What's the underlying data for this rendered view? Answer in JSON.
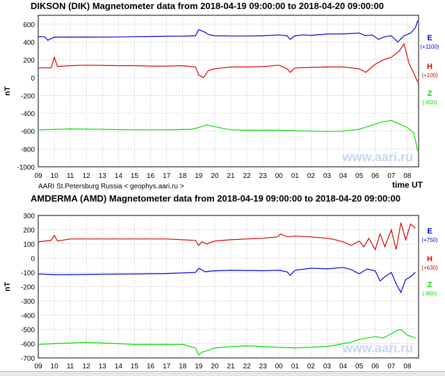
{
  "footer_note": "AARI St.Petersburg Russia   < geophys.aari.ru >",
  "chart_data": [
    {
      "type": "line",
      "title": "DIKSON (DIK) Magnetometer data from 2018-04-19 09:00:00 to 2018-04-20 09:00:00",
      "ylabel": "nT",
      "xlabel": "time UT",
      "ylim": [
        -1000,
        700
      ],
      "yticks": [
        600,
        400,
        200,
        0,
        -200,
        -400,
        -600,
        -800,
        -1000
      ],
      "xlim": [
        0,
        23.7
      ],
      "xtick_labels": [
        "09",
        "10",
        "11",
        "12",
        "13",
        "14",
        "15",
        "16",
        "17",
        "18",
        "19",
        "20",
        "21",
        "22",
        "23",
        "00",
        "01",
        "02",
        "03",
        "04",
        "05",
        "06",
        "07",
        "08"
      ],
      "grid": true,
      "watermark": "www.aari.ru",
      "series": [
        {
          "name": "E",
          "offset_label": "(+1100)",
          "color": "#0000dd",
          "x": [
            0,
            0.4,
            0.6,
            1,
            2,
            3,
            4,
            5,
            6,
            7,
            8,
            9,
            9.8,
            10,
            10.4,
            10.6,
            11,
            12,
            13,
            14,
            15,
            15.5,
            15.7,
            16,
            16.5,
            17,
            18,
            19,
            20,
            20.4,
            20.8,
            21.2,
            21.6,
            22,
            22.4,
            22.8,
            23.2,
            23.5,
            23.65
          ],
          "y": [
            460,
            460,
            420,
            455,
            455,
            455,
            456,
            457,
            460,
            462,
            465,
            466,
            470,
            540,
            510,
            485,
            470,
            468,
            468,
            470,
            480,
            470,
            430,
            470,
            480,
            475,
            490,
            490,
            500,
            470,
            480,
            430,
            460,
            470,
            400,
            470,
            500,
            560,
            640
          ]
        },
        {
          "name": "H",
          "offset_label": "(+100)",
          "color": "#dd0000",
          "x": [
            0,
            0.8,
            1,
            1.2,
            2,
            3,
            4,
            5,
            6,
            7,
            8,
            9,
            9.8,
            10,
            10.3,
            10.6,
            11,
            11.5,
            12,
            13,
            14,
            15,
            15.5,
            15.7,
            16,
            17,
            18,
            19,
            20,
            20.4,
            21,
            21.5,
            22,
            22.5,
            22.8,
            23.1,
            23.4,
            23.65
          ],
          "y": [
            110,
            110,
            230,
            125,
            135,
            140,
            138,
            135,
            135,
            130,
            130,
            135,
            120,
            30,
            0,
            80,
            100,
            110,
            120,
            120,
            125,
            140,
            100,
            60,
            110,
            115,
            120,
            120,
            100,
            60,
            150,
            200,
            230,
            300,
            380,
            160,
            50,
            -50
          ]
        },
        {
          "name": "Z",
          "offset_label": "(-650)",
          "color": "#00dd00",
          "x": [
            0,
            2,
            4,
            6,
            8,
            9.5,
            10,
            10.5,
            11,
            12,
            13,
            14,
            15,
            16,
            17,
            18,
            19,
            20,
            20.5,
            21,
            21.5,
            22,
            22.5,
            23,
            23.4,
            23.65
          ],
          "y": [
            -585,
            -575,
            -580,
            -585,
            -585,
            -580,
            -560,
            -530,
            -550,
            -585,
            -590,
            -590,
            -590,
            -595,
            -600,
            -605,
            -600,
            -580,
            -550,
            -520,
            -495,
            -480,
            -520,
            -560,
            -620,
            -820
          ]
        }
      ]
    },
    {
      "type": "line",
      "title": "AMDERMA (AMD) Magnetometer data from 2018-04-19 09:00:00 to 2018-04-20 09:00:00",
      "ylabel": "nT",
      "ylim": [
        -700,
        300
      ],
      "yticks": [
        300,
        200,
        100,
        0,
        -100,
        -200,
        -300,
        -400,
        -500,
        -600,
        -700
      ],
      "xlim": [
        0,
        23.7
      ],
      "xtick_labels": [
        "09",
        "10",
        "11",
        "12",
        "13",
        "14",
        "15",
        "16",
        "17",
        "18",
        "19",
        "20",
        "21",
        "22",
        "23",
        "00",
        "01",
        "02",
        "03",
        "04",
        "05",
        "06",
        "07",
        "08"
      ],
      "grid": true,
      "watermark": "www.aari.ru",
      "series": [
        {
          "name": "E",
          "offset_label": "(+750)",
          "color": "#0000dd",
          "x": [
            0,
            1,
            2,
            4,
            6,
            8,
            9.8,
            10,
            10.4,
            10.8,
            12,
            14,
            15,
            15.5,
            15.7,
            16,
            17,
            18,
            19,
            19.5,
            20,
            20.5,
            21,
            21.3,
            21.6,
            22,
            22.3,
            22.6,
            22.9,
            23.2,
            23.5
          ],
          "y": [
            -110,
            -115,
            -115,
            -112,
            -110,
            -108,
            -100,
            -70,
            -95,
            -90,
            -85,
            -88,
            -85,
            -95,
            -120,
            -85,
            -70,
            -75,
            -65,
            -80,
            -110,
            -75,
            -90,
            -160,
            -130,
            -100,
            -180,
            -240,
            -150,
            -130,
            -100
          ]
        },
        {
          "name": "H",
          "offset_label": "(+630)",
          "color": "#dd0000",
          "x": [
            0,
            0.8,
            1,
            1.2,
            2,
            4,
            6,
            8,
            9.8,
            10,
            10.2,
            10.5,
            11,
            12,
            14,
            14.9,
            15.1,
            15.5,
            16,
            17,
            18,
            18.5,
            19,
            19.5,
            20,
            20.3,
            20.6,
            21,
            21.3,
            21.6,
            22,
            22.3,
            22.6,
            22.9,
            23.2,
            23.5
          ],
          "y": [
            115,
            125,
            160,
            120,
            135,
            135,
            135,
            135,
            125,
            90,
            115,
            100,
            120,
            130,
            140,
            150,
            170,
            150,
            155,
            150,
            140,
            130,
            115,
            90,
            120,
            80,
            140,
            60,
            170,
            80,
            200,
            60,
            250,
            130,
            240,
            210
          ]
        },
        {
          "name": "Z",
          "offset_label": "(-900)",
          "color": "#00dd00",
          "x": [
            0,
            1,
            2,
            3,
            4,
            5,
            6,
            7,
            8,
            9,
            9.8,
            10,
            10.2,
            10.5,
            11,
            12,
            13,
            14,
            15,
            16,
            17,
            18,
            18.5,
            19,
            19.5,
            20,
            20.5,
            21,
            21.5,
            22,
            22.3,
            22.6,
            23,
            23.5
          ],
          "y": [
            -605,
            -600,
            -595,
            -590,
            -595,
            -600,
            -605,
            -605,
            -605,
            -605,
            -630,
            -680,
            -660,
            -650,
            -630,
            -620,
            -615,
            -620,
            -625,
            -630,
            -625,
            -620,
            -610,
            -600,
            -590,
            -570,
            -560,
            -550,
            -560,
            -530,
            -510,
            -500,
            -540,
            -560
          ]
        }
      ]
    }
  ]
}
